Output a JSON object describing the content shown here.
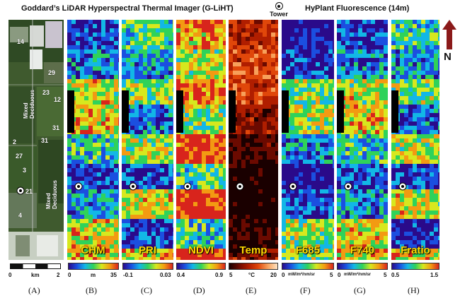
{
  "header": {
    "left_title": "Goddard’s LiDAR Hyperspectral Thermal Imager (G-LiHT)",
    "tower_label": "Tower",
    "right_title": "HyPlant Fluorescence (14m)",
    "north_label": "N"
  },
  "panels": [
    {
      "id": "A",
      "name": "",
      "letter": "(A)",
      "scale": {
        "left": "0",
        "mid": "km",
        "right": "2"
      }
    },
    {
      "id": "B",
      "name": "CHM",
      "letter": "(B)",
      "cbar": {
        "min": "0",
        "unit": "m",
        "max": "35"
      }
    },
    {
      "id": "C",
      "name": "PRI",
      "letter": "(C)",
      "cbar": {
        "min": "-0.1",
        "unit": "",
        "max": "0.03"
      }
    },
    {
      "id": "D",
      "name": "NDVI",
      "letter": "(D)",
      "cbar": {
        "min": "0.4",
        "unit": "",
        "max": "0.9"
      }
    },
    {
      "id": "E",
      "name": "Temp",
      "letter": "(E)",
      "cbar": {
        "min": "5",
        "unit": "°C",
        "max": "20"
      }
    },
    {
      "id": "F",
      "name": "F685",
      "letter": "(F)",
      "cbar": {
        "min": "0",
        "unit": "mW/m²/nm/sr",
        "max": "5"
      }
    },
    {
      "id": "G",
      "name": "F740",
      "letter": "(G)",
      "cbar": {
        "min": "0",
        "unit": "mW/m²/nm/sr",
        "max": "5"
      }
    },
    {
      "id": "H",
      "name": "Fratio",
      "letter": "(H)",
      "cbar": {
        "min": "0.5",
        "unit": "",
        "max": "1.5"
      }
    }
  ],
  "map_labels": [
    "14",
    "29",
    "23",
    "12",
    "31",
    "31",
    "2",
    "27",
    "3",
    "21",
    "4"
  ],
  "map_text": {
    "mixed1": "Mixed Deciduous",
    "mixed2": "Mixed Deciduous"
  },
  "colors": {
    "rainbow": [
      "#2a0a8a",
      "#1b4fe0",
      "#12b7e6",
      "#2fd25a",
      "#d7e81e",
      "#f39a12",
      "#d8241c"
    ],
    "thermal": [
      "#1a0000",
      "#6b0a00",
      "#b01e00",
      "#e0470a",
      "#f7a05a",
      "#ffe3c2"
    ],
    "label_yellow": "#ffd800"
  }
}
